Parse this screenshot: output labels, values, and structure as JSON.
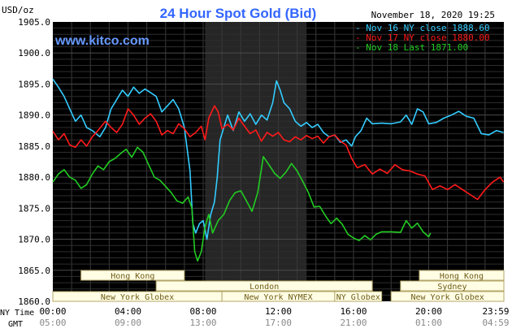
{
  "chart_data": {
    "type": "line",
    "title": "24 Hour Spot Gold (Bid)",
    "subtitle": "November 18, 2020 19:25",
    "watermark": "www.kitco.com",
    "y_unit_label": "USD/oz",
    "ylim": [
      1860,
      1905
    ],
    "y_ticks": [
      "1905.0",
      "1900.0",
      "1895.0",
      "1890.0",
      "1885.0",
      "1880.0",
      "1875.0",
      "1870.0",
      "1865.0",
      "1860.0"
    ],
    "x_ticks_ny": [
      "00:00",
      "04:00",
      "08:00",
      "12:00",
      "16:00",
      "20:00",
      "23:59"
    ],
    "x_ticks_gmt": [
      "05:00",
      "09:00",
      "13:00",
      "17:00",
      "21:00",
      "01:00",
      "04:59"
    ],
    "x_axis_ny_label": "NY Time",
    "x_axis_gmt_label": "GMT",
    "grid": true,
    "legend_position": "top-right",
    "colors": {
      "background": "#000000",
      "grid": "#3a3a3a",
      "highlight": "#2a2a2a",
      "axis_text": "#000000",
      "title": "#3366ff",
      "watermark": "#6699ff"
    },
    "series": [
      {
        "name": "Nov 16 NY close 1888.60",
        "color": "#33ccff",
        "points": [
          [
            0,
            1895.8
          ],
          [
            0.3,
            1894.5
          ],
          [
            0.6,
            1893
          ],
          [
            0.9,
            1891
          ],
          [
            1.2,
            1889
          ],
          [
            1.5,
            1890
          ],
          [
            1.8,
            1888
          ],
          [
            2.1,
            1887.5
          ],
          [
            2.5,
            1886.5
          ],
          [
            2.8,
            1888
          ],
          [
            3.1,
            1891
          ],
          [
            3.4,
            1892.5
          ],
          [
            3.7,
            1894
          ],
          [
            4,
            1893
          ],
          [
            4.3,
            1894.5
          ],
          [
            4.6,
            1893.5
          ],
          [
            4.9,
            1894.2
          ],
          [
            5.2,
            1893.6
          ],
          [
            5.5,
            1893
          ],
          [
            5.8,
            1890.5
          ],
          [
            6.1,
            1891.5
          ],
          [
            6.4,
            1892.5
          ],
          [
            6.7,
            1891
          ],
          [
            7,
            1888
          ],
          [
            7.3,
            1881
          ],
          [
            7.45,
            1872.5
          ],
          [
            7.6,
            1871
          ],
          [
            7.8,
            1872.5
          ],
          [
            8,
            1873
          ],
          [
            8.2,
            1870
          ],
          [
            8.4,
            1874
          ],
          [
            8.6,
            1876
          ],
          [
            8.75,
            1880
          ],
          [
            8.9,
            1886
          ],
          [
            9.1,
            1888
          ],
          [
            9.3,
            1890
          ],
          [
            9.6,
            1887.5
          ],
          [
            9.9,
            1890.5
          ],
          [
            10.2,
            1889
          ],
          [
            10.5,
            1890.2
          ],
          [
            10.8,
            1888.5
          ],
          [
            11.1,
            1890
          ],
          [
            11.4,
            1889.2
          ],
          [
            11.7,
            1892
          ],
          [
            11.9,
            1895.5
          ],
          [
            12.1,
            1894
          ],
          [
            12.3,
            1892
          ],
          [
            12.6,
            1891
          ],
          [
            12.9,
            1889
          ],
          [
            13.2,
            1888.2
          ],
          [
            13.5,
            1888.8
          ],
          [
            13.8,
            1888
          ],
          [
            14.1,
            1888.5
          ],
          [
            14.4,
            1887.2
          ],
          [
            14.7,
            1886.5
          ],
          [
            15,
            1886.8
          ],
          [
            15.3,
            1885.6
          ],
          [
            15.6,
            1886
          ],
          [
            15.9,
            1885
          ],
          [
            16.1,
            1886.5
          ],
          [
            16.4,
            1887.5
          ],
          [
            16.7,
            1889.5
          ],
          [
            17,
            1888.6
          ],
          [
            17.5,
            1888.7
          ],
          [
            18,
            1888.6
          ],
          [
            18.5,
            1888.9
          ],
          [
            18.8,
            1890
          ],
          [
            19.1,
            1888.5
          ],
          [
            19.4,
            1891
          ],
          [
            19.7,
            1890.5
          ],
          [
            20,
            1888.6
          ],
          [
            20.4,
            1888.8
          ],
          [
            20.8,
            1889.5
          ],
          [
            21.2,
            1890
          ],
          [
            21.6,
            1890.6
          ],
          [
            22,
            1889.8
          ],
          [
            22.4,
            1889.5
          ],
          [
            22.8,
            1887
          ],
          [
            23.2,
            1886.8
          ],
          [
            23.6,
            1887.5
          ],
          [
            23.98,
            1887.2
          ]
        ]
      },
      {
        "name": "Nov 17 NY close 1880.00",
        "color": "#ff1a1a",
        "points": [
          [
            0,
            1887.4
          ],
          [
            0.3,
            1886
          ],
          [
            0.6,
            1887
          ],
          [
            0.9,
            1885.2
          ],
          [
            1.2,
            1884.8
          ],
          [
            1.5,
            1886
          ],
          [
            1.8,
            1885
          ],
          [
            2.1,
            1886.5
          ],
          [
            2.4,
            1887.5
          ],
          [
            2.8,
            1889
          ],
          [
            3.1,
            1888
          ],
          [
            3.4,
            1887.2
          ],
          [
            3.7,
            1888.5
          ],
          [
            4,
            1891
          ],
          [
            4.3,
            1890
          ],
          [
            4.6,
            1888.5
          ],
          [
            4.9,
            1889.5
          ],
          [
            5.2,
            1890.2
          ],
          [
            5.5,
            1889
          ],
          [
            5.8,
            1886.8
          ],
          [
            6.1,
            1887.5
          ],
          [
            6.4,
            1887
          ],
          [
            6.7,
            1888.6
          ],
          [
            7,
            1887.8
          ],
          [
            7.3,
            1886.5
          ],
          [
            7.6,
            1887.2
          ],
          [
            7.9,
            1888.2
          ],
          [
            8.1,
            1886
          ],
          [
            8.3,
            1889.5
          ],
          [
            8.6,
            1891.5
          ],
          [
            8.8,
            1890.5
          ],
          [
            9,
            1887.8
          ],
          [
            9.3,
            1888.5
          ],
          [
            9.6,
            1887.6
          ],
          [
            9.9,
            1889.5
          ],
          [
            10.2,
            1888.2
          ],
          [
            10.5,
            1887
          ],
          [
            10.8,
            1887.6
          ],
          [
            11.1,
            1885.8
          ],
          [
            11.4,
            1887.2
          ],
          [
            11.7,
            1886.6
          ],
          [
            12,
            1887.2
          ],
          [
            12.3,
            1886
          ],
          [
            12.6,
            1885.7
          ],
          [
            12.9,
            1886.5
          ],
          [
            13.2,
            1886
          ],
          [
            13.5,
            1886.7
          ],
          [
            13.8,
            1886.2
          ],
          [
            14.1,
            1886.6
          ],
          [
            14.4,
            1885.5
          ],
          [
            14.7,
            1886.5
          ],
          [
            15,
            1886.8
          ],
          [
            15.3,
            1885.8
          ],
          [
            15.6,
            1885.2
          ],
          [
            15.9,
            1883
          ],
          [
            16.2,
            1881.5
          ],
          [
            16.6,
            1882
          ],
          [
            17,
            1880.5
          ],
          [
            17.4,
            1881.3
          ],
          [
            17.8,
            1880.6
          ],
          [
            18.2,
            1882
          ],
          [
            18.6,
            1881.2
          ],
          [
            19,
            1881
          ],
          [
            19.4,
            1880.5
          ],
          [
            19.8,
            1880.2
          ],
          [
            20.2,
            1878
          ],
          [
            20.6,
            1878.6
          ],
          [
            21,
            1878
          ],
          [
            21.4,
            1878.8
          ],
          [
            21.8,
            1878
          ],
          [
            22.2,
            1877.2
          ],
          [
            22.6,
            1876.4
          ],
          [
            23,
            1878
          ],
          [
            23.4,
            1879.2
          ],
          [
            23.8,
            1880
          ],
          [
            23.98,
            1879.2
          ]
        ]
      },
      {
        "name": "Nov 18 Last 1871.00",
        "color": "#22cc22",
        "points": [
          [
            0,
            1879.2
          ],
          [
            0.3,
            1880.5
          ],
          [
            0.6,
            1881.2
          ],
          [
            0.9,
            1880
          ],
          [
            1.2,
            1879.5
          ],
          [
            1.5,
            1878.2
          ],
          [
            1.8,
            1878.8
          ],
          [
            2.1,
            1880.5
          ],
          [
            2.4,
            1881.8
          ],
          [
            2.7,
            1881.2
          ],
          [
            3,
            1882.5
          ],
          [
            3.3,
            1883
          ],
          [
            3.6,
            1883.8
          ],
          [
            3.9,
            1884.5
          ],
          [
            4.2,
            1883.2
          ],
          [
            4.5,
            1884.8
          ],
          [
            4.8,
            1884
          ],
          [
            5.1,
            1882
          ],
          [
            5.4,
            1880
          ],
          [
            5.7,
            1879.5
          ],
          [
            6,
            1878.5
          ],
          [
            6.3,
            1877.5
          ],
          [
            6.6,
            1876.2
          ],
          [
            6.9,
            1875.8
          ],
          [
            7.2,
            1876.8
          ],
          [
            7.4,
            1875
          ],
          [
            7.55,
            1868
          ],
          [
            7.7,
            1866.5
          ],
          [
            7.9,
            1868
          ],
          [
            8.1,
            1872
          ],
          [
            8.3,
            1874
          ],
          [
            8.5,
            1871
          ],
          [
            8.8,
            1873
          ],
          [
            9.1,
            1874
          ],
          [
            9.4,
            1876.2
          ],
          [
            9.7,
            1877.5
          ],
          [
            10,
            1877.8
          ],
          [
            10.3,
            1876.2
          ],
          [
            10.6,
            1874.5
          ],
          [
            10.9,
            1877.5
          ],
          [
            11.2,
            1883.3
          ],
          [
            11.5,
            1882
          ],
          [
            11.8,
            1880.6
          ],
          [
            12.1,
            1879.8
          ],
          [
            12.4,
            1880.8
          ],
          [
            12.7,
            1882.2
          ],
          [
            13,
            1881
          ],
          [
            13.3,
            1879.3
          ],
          [
            13.6,
            1877.5
          ],
          [
            13.9,
            1875.2
          ],
          [
            14.2,
            1875.3
          ],
          [
            14.5,
            1873.8
          ],
          [
            14.8,
            1872.5
          ],
          [
            15.1,
            1873.4
          ],
          [
            15.4,
            1872.4
          ],
          [
            15.7,
            1870.8
          ],
          [
            16,
            1870.2
          ],
          [
            16.3,
            1869.8
          ],
          [
            16.6,
            1870.6
          ],
          [
            16.9,
            1869.9
          ],
          [
            17.2,
            1870.8
          ],
          [
            17.5,
            1871.2
          ],
          [
            18,
            1871.2
          ],
          [
            18.5,
            1871.1
          ],
          [
            18.8,
            1873
          ],
          [
            19.1,
            1871.8
          ],
          [
            19.4,
            1872.6
          ],
          [
            19.7,
            1871.2
          ],
          [
            20,
            1870.4
          ],
          [
            20.1,
            1871
          ]
        ]
      }
    ]
  },
  "sessions": [
    {
      "label": "Hong Kong",
      "start": 1.5,
      "end": 7.0,
      "row": 0
    },
    {
      "label": "London",
      "start": 5.5,
      "end": 17.0,
      "row": 1
    },
    {
      "label": "New York Globex",
      "start": 0,
      "end": 9.0,
      "row": 2
    },
    {
      "label": "New York NYMEX",
      "start": 9.0,
      "end": 15.0,
      "row": 2
    },
    {
      "label": "NY Globex",
      "start": 15.0,
      "end": 17.5,
      "row": 2
    },
    {
      "label": "Hong Kong",
      "start": 19.5,
      "end": 24.0,
      "row": 0
    },
    {
      "label": "Sydney",
      "start": 18.5,
      "end": 24.0,
      "row": 1
    },
    {
      "label": "New York Globex",
      "start": 18.0,
      "end": 24.0,
      "row": 2
    }
  ],
  "highlight_band": {
    "start": 8.1,
    "end": 13.5
  }
}
